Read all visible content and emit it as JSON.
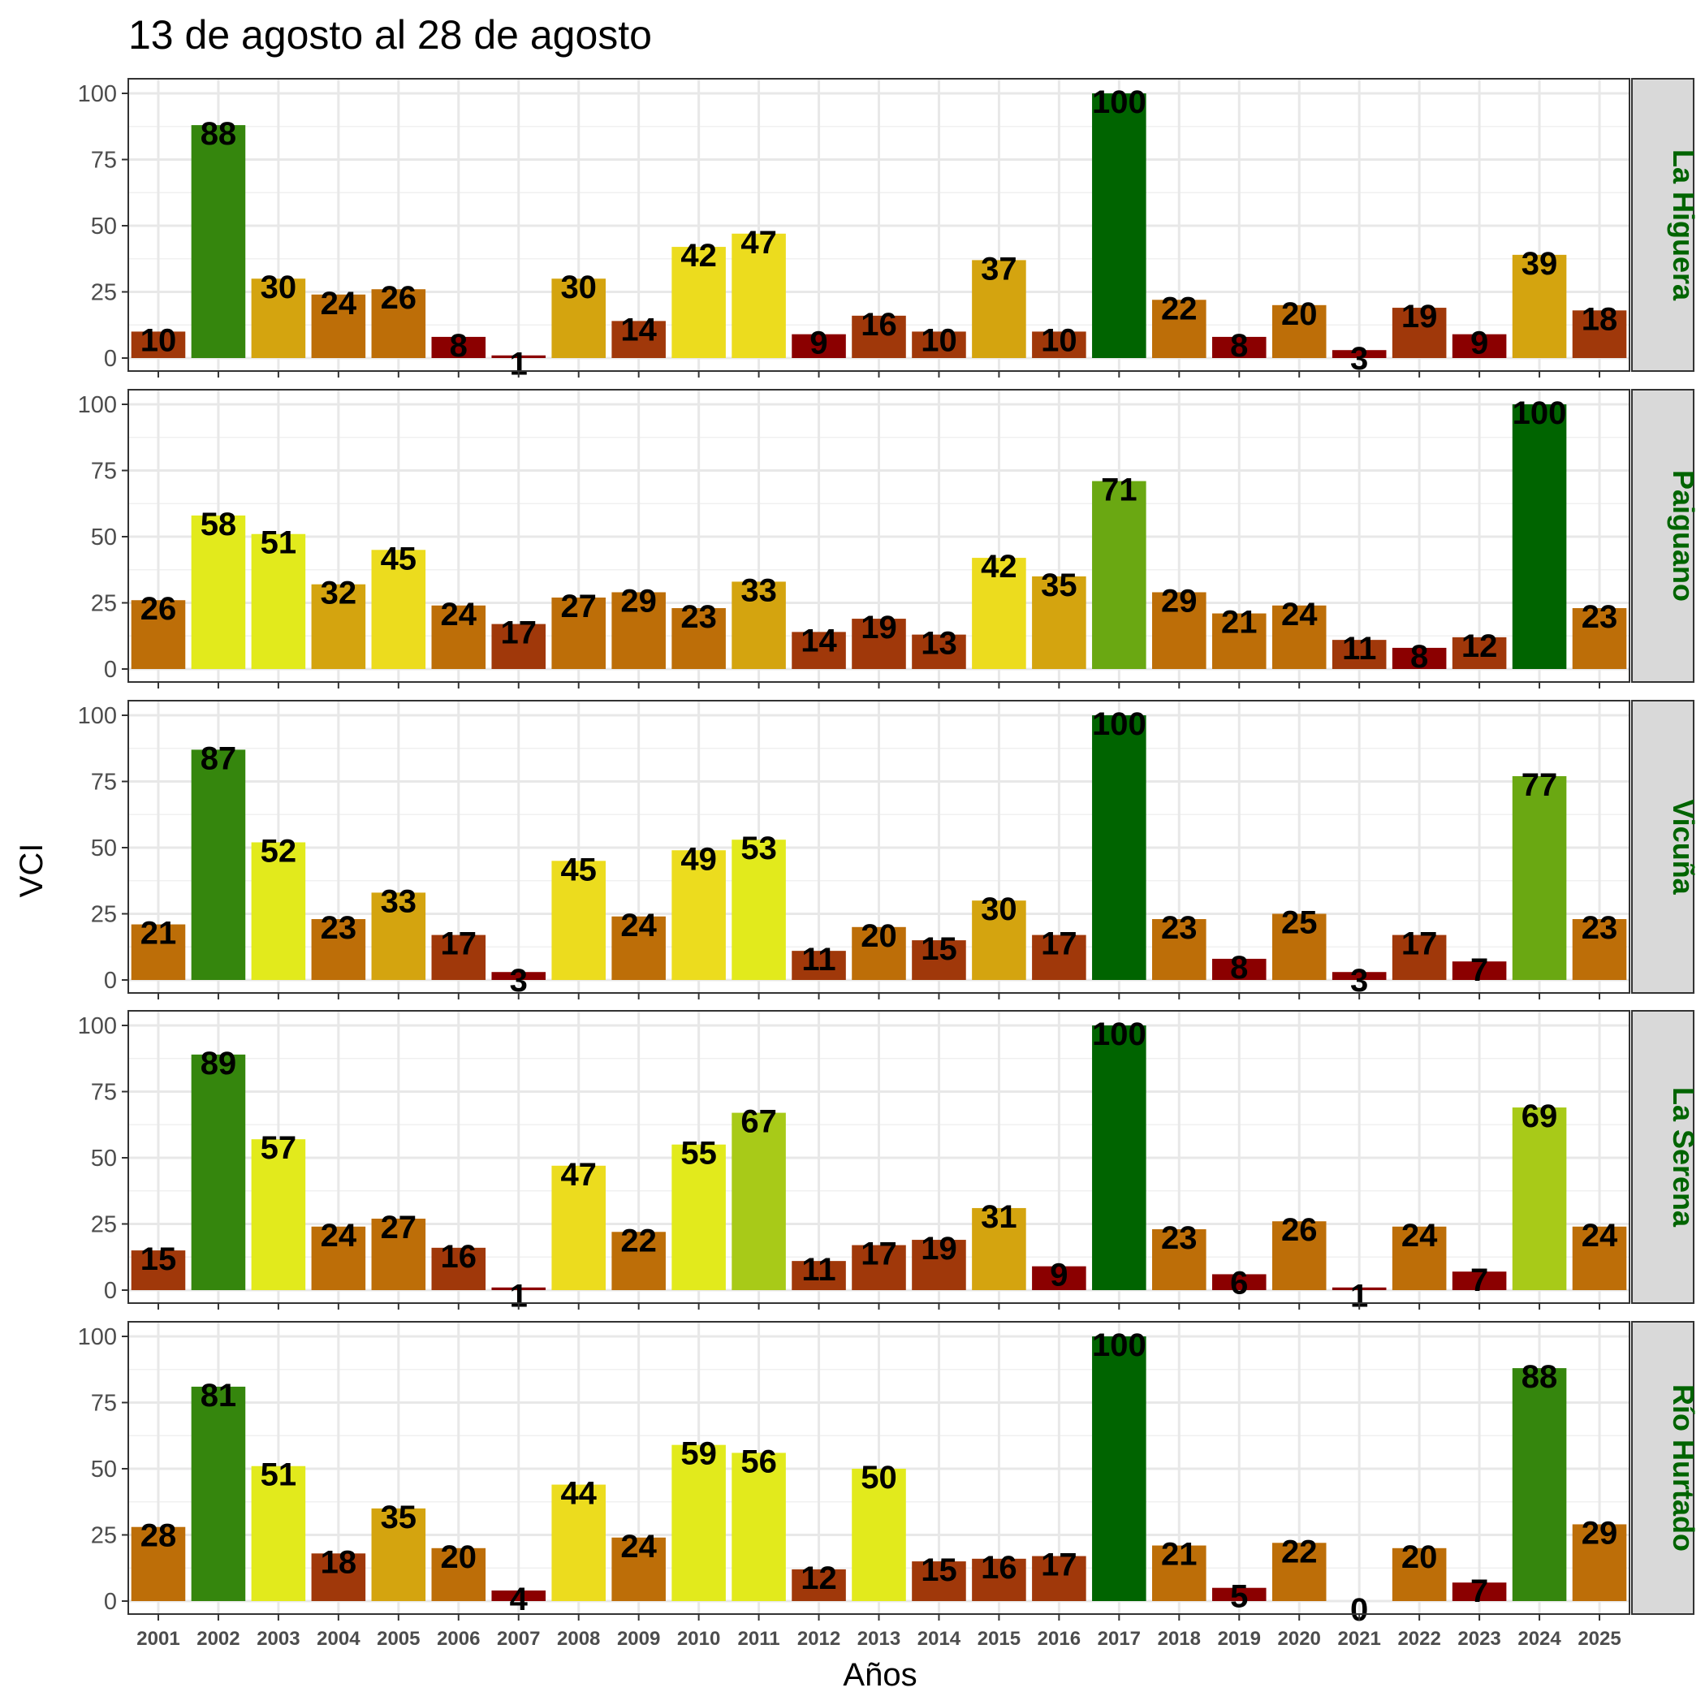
{
  "chart_data": {
    "type": "bar",
    "title": "13 de agosto al 28 de agosto",
    "xlabel": "Años",
    "ylabel": "VCI",
    "ylim": [
      0,
      100
    ],
    "yticks": [
      0,
      25,
      50,
      75,
      100
    ],
    "categories": [
      "2001",
      "2002",
      "2003",
      "2004",
      "2005",
      "2006",
      "2007",
      "2008",
      "2009",
      "2010",
      "2011",
      "2012",
      "2013",
      "2014",
      "2015",
      "2016",
      "2017",
      "2018",
      "2019",
      "2020",
      "2021",
      "2022",
      "2023",
      "2024",
      "2025"
    ],
    "strip_color": "#006400",
    "color_scale": [
      {
        "min": 0,
        "color": "#8b0000"
      },
      {
        "min": 10,
        "color": "#a0380a"
      },
      {
        "min": 20,
        "color": "#bd6e08"
      },
      {
        "min": 30,
        "color": "#d4a40f"
      },
      {
        "min": 40,
        "color": "#ecdc1e"
      },
      {
        "min": 50,
        "color": "#e2ea1c"
      },
      {
        "min": 60,
        "color": "#a8ca18"
      },
      {
        "min": 70,
        "color": "#6aa812"
      },
      {
        "min": 80,
        "color": "#35860d"
      },
      {
        "min": 95,
        "color": "#006400"
      }
    ],
    "series": [
      {
        "name": "La Higuera",
        "values": [
          10,
          88,
          30,
          24,
          26,
          8,
          1,
          30,
          14,
          42,
          47,
          9,
          16,
          10,
          37,
          10,
          100,
          22,
          8,
          20,
          3,
          19,
          9,
          39,
          18
        ]
      },
      {
        "name": "Paiguano",
        "values": [
          26,
          58,
          51,
          32,
          45,
          24,
          17,
          27,
          29,
          23,
          33,
          14,
          19,
          13,
          42,
          35,
          71,
          29,
          21,
          24,
          11,
          8,
          12,
          100,
          23
        ]
      },
      {
        "name": "Vicuña",
        "values": [
          21,
          87,
          52,
          23,
          33,
          17,
          3,
          45,
          24,
          49,
          53,
          11,
          20,
          15,
          30,
          17,
          100,
          23,
          8,
          25,
          3,
          17,
          7,
          77,
          23
        ]
      },
      {
        "name": "La Serena",
        "values": [
          15,
          89,
          57,
          24,
          27,
          16,
          1,
          47,
          22,
          55,
          67,
          11,
          17,
          19,
          31,
          9,
          100,
          23,
          6,
          26,
          1,
          24,
          7,
          69,
          24
        ]
      },
      {
        "name": "Río Hurtado",
        "values": [
          28,
          81,
          51,
          18,
          35,
          20,
          4,
          44,
          24,
          59,
          56,
          12,
          50,
          15,
          16,
          17,
          100,
          21,
          5,
          22,
          0,
          20,
          7,
          88,
          29
        ]
      }
    ]
  }
}
